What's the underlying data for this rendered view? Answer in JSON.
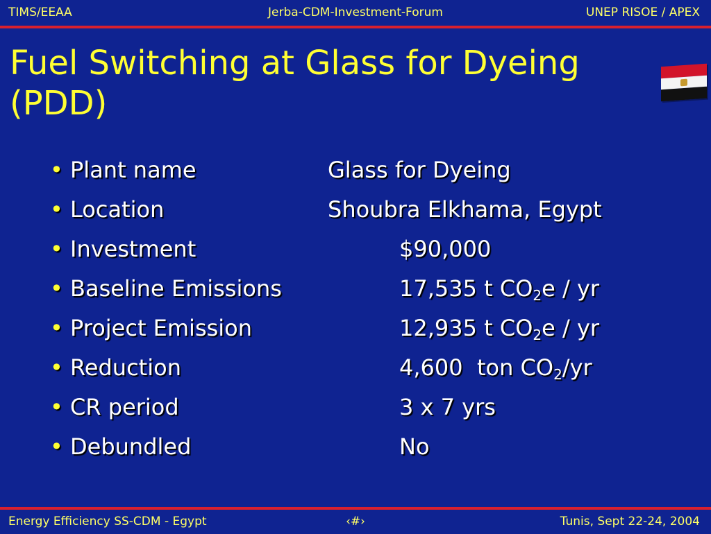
{
  "header": {
    "left": "TIMS/EEAA",
    "center": "Jerba-CDM-Investment-Forum",
    "right": "UNEP RISOE / APEX"
  },
  "title": "Fuel Switching at Glass for Dyeing (PDD)",
  "flag_icon": "egypt-flag-icon",
  "items": [
    {
      "label": "Plant name",
      "value": "Glass for Dyeing"
    },
    {
      "label": "Location",
      "value": "Shoubra Elkhama, Egypt"
    },
    {
      "label": "Investment",
      "value": "$90,000"
    },
    {
      "label": "Baseline Emissions",
      "value_pre": "17,535 t CO",
      "value_sub": "2",
      "value_post": "e / yr"
    },
    {
      "label": "Project Emission",
      "value_pre": "12,935 t CO",
      "value_sub": "2",
      "value_post": "e / yr"
    },
    {
      "label": "Reduction",
      "value_pre": "4,600  ton CO",
      "value_sub": "2",
      "value_post": "/yr"
    },
    {
      "label": "CR period",
      "value": "3 x 7 yrs"
    },
    {
      "label": "Debundled",
      "value": "No"
    }
  ],
  "footer": {
    "left": "Energy Efficiency SS-CDM - Egypt",
    "center": "‹#›",
    "right": "Tunis,  Sept 22-24, 2004"
  },
  "colors": {
    "background": "#0f2391",
    "accent_yellow": "#ffff33",
    "rule_red": "#d8202e"
  }
}
